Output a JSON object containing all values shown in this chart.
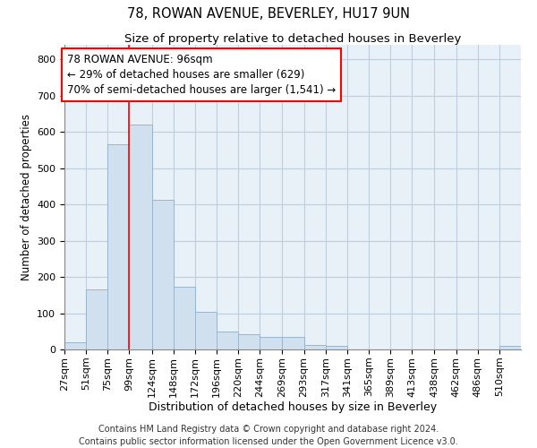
{
  "title_line1": "78, ROWAN AVENUE, BEVERLEY, HU17 9UN",
  "title_line2": "Size of property relative to detached houses in Beverley",
  "xlabel": "Distribution of detached houses by size in Beverley",
  "ylabel": "Number of detached properties",
  "bar_color": "#d0e0ee",
  "bar_edge_color": "#9ab5cc",
  "grid_color": "#c0cedc",
  "background_color": "#e8f0f8",
  "annotation_line_color": "red",
  "annotation_box_color": "red",
  "annotation_text": "78 ROWAN AVENUE: 96sqm\n← 29% of detached houses are smaller (629)\n70% of semi-detached houses are larger (1,541) →",
  "property_line_x": 99,
  "bins": [
    27,
    51,
    75,
    99,
    124,
    148,
    172,
    196,
    220,
    244,
    269,
    293,
    317,
    341,
    365,
    389,
    413,
    438,
    462,
    486,
    510
  ],
  "bar_heights": [
    20,
    165,
    565,
    620,
    413,
    172,
    103,
    50,
    42,
    35,
    35,
    13,
    10,
    0,
    0,
    0,
    0,
    0,
    0,
    0,
    10
  ],
  "ylim": [
    0,
    840
  ],
  "yticks": [
    0,
    100,
    200,
    300,
    400,
    500,
    600,
    700,
    800
  ],
  "xlim_left": 27,
  "xlim_right": 534,
  "footer_text": "Contains HM Land Registry data © Crown copyright and database right 2024.\nContains public sector information licensed under the Open Government Licence v3.0.",
  "title_fontsize": 10.5,
  "subtitle_fontsize": 9.5,
  "xlabel_fontsize": 9,
  "ylabel_fontsize": 8.5,
  "tick_fontsize": 8,
  "footer_fontsize": 7,
  "annot_fontsize": 8.5
}
